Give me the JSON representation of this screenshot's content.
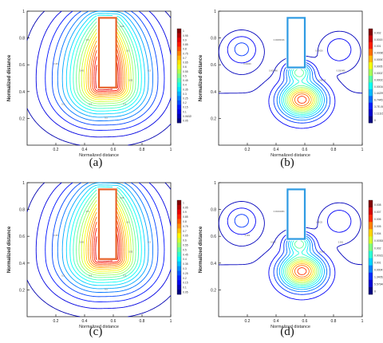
{
  "chart_data": [
    {
      "type": "heatmap",
      "panel_label": "(a)",
      "xlabel": "Normalized distance",
      "ylabel": "Normalized distance",
      "xlim": [
        0,
        1
      ],
      "ylim": [
        0,
        1
      ],
      "x_ticks": [
        "0.2",
        "0.4",
        "0.6",
        "0.8",
        "1"
      ],
      "y_ticks": [
        "0.2",
        "0.4",
        "0.6",
        "0.8",
        "1"
      ],
      "colorbar_labels": [
        "1",
        "0.95",
        "0.9",
        "0.85",
        "0.8",
        "0.75",
        "0.7",
        "0.65",
        "0.6",
        "0.55",
        "0.5",
        "0.45",
        "0.4",
        "0.35",
        "0.3",
        "0.25",
        "0.2",
        "0.15",
        "0.1",
        "0.0632511",
        "0.05"
      ],
      "colormap": "rainbow",
      "field_type": "temperature",
      "obstacle": {
        "x0": 0.5,
        "x1": 0.62,
        "y0": 0.43,
        "y1": 0.95
      },
      "obstacle_color": "#e8622a",
      "contour_labels": [
        "0.5",
        "0.45",
        "0.6",
        "0.55",
        "0.35",
        "0.3",
        "0.2",
        "0.4",
        "0.5",
        "0.6",
        "0.65"
      ]
    },
    {
      "type": "heatmap",
      "panel_label": "(b)",
      "xlabel": "Normalized distance",
      "ylabel": "Normalized distance",
      "xlim": [
        0,
        1
      ],
      "ylim": [
        0,
        1
      ],
      "x_ticks": [
        "0.2",
        "0.4",
        "0.6",
        "0.8",
        "1"
      ],
      "y_ticks": [
        "0.2",
        "0.4",
        "0.6",
        "0.8",
        "1"
      ],
      "colorbar_labels": [
        "0.002",
        "0.0015",
        "0.001",
        "0.000850004",
        "0.000677202",
        "0.0005",
        "0.000275405",
        "0.00023815",
        "0.00016",
        "1.44299E-05",
        "6.74453E-06",
        "3.7E-06",
        "1.11116E-07",
        "0"
      ],
      "colormap": "rainbow",
      "field_type": "concentration",
      "obstacle": {
        "x0": 0.48,
        "x1": 0.6,
        "y0": 0.58,
        "y1": 0.95
      },
      "obstacle_color": "#2e9be3",
      "contour_labels": [
        "0.00065036",
        "0.000486",
        "0.00026",
        "2.6E-05",
        "0.00026",
        "0.000486"
      ]
    },
    {
      "type": "heatmap",
      "panel_label": "(c)",
      "xlabel": "Normalized distance",
      "ylabel": "Normalized distance",
      "xlim": [
        0,
        1
      ],
      "ylim": [
        0,
        1
      ],
      "x_ticks": [
        "0.2",
        "0.4",
        "0.6",
        "0.8",
        "1"
      ],
      "y_ticks": [
        "0.2",
        "0.4",
        "0.6",
        "0.8",
        "1"
      ],
      "colorbar_labels": [
        "1",
        "0.95",
        "0.9",
        "0.85",
        "0.8",
        "0.75",
        "0.7",
        "0.65",
        "0.6",
        "0.55",
        "0.5",
        "0.45",
        "0.4",
        "0.35",
        "0.3",
        "0.25",
        "0.2",
        "0.15",
        "0.1",
        "0.05"
      ],
      "colormap": "rainbow",
      "field_type": "temperature",
      "obstacle": {
        "x0": 0.5,
        "x1": 0.62,
        "y0": 0.43,
        "y1": 0.95
      },
      "obstacle_color": "#e8622a",
      "contour_labels": [
        "0.5",
        "0.45",
        "0.6",
        "0.55",
        "0.35",
        "0.3",
        "0.2",
        "0.4",
        "0.5",
        "0.6",
        "0.65"
      ]
    },
    {
      "type": "heatmap",
      "panel_label": "(d)",
      "xlabel": "Normalized distance",
      "ylabel": "Normalized distance",
      "xlim": [
        0,
        1
      ],
      "ylim": [
        0,
        1
      ],
      "x_ticks": [
        "0.2",
        "0.4",
        "0.6",
        "0.8",
        "1"
      ],
      "y_ticks": [
        "0.2",
        "0.4",
        "0.6",
        "0.8",
        "1"
      ],
      "colorbar_labels": [
        "0.008",
        "0.007",
        "0.006",
        "0.005",
        "0.004",
        "0.00308495",
        "0.002",
        "0.00162084",
        "0.001",
        "0.000415288",
        "1.34052E-05",
        "5.57646E-07",
        "0"
      ],
      "colormap": "rainbow",
      "field_type": "concentration",
      "obstacle": {
        "x0": 0.48,
        "x1": 0.6,
        "y0": 0.58,
        "y1": 0.95
      },
      "obstacle_color": "#2e9be3",
      "contour_labels": [
        "0.00162084",
        "0.001",
        "0.0025",
        "0.004",
        "0.002",
        "0.001"
      ]
    }
  ]
}
